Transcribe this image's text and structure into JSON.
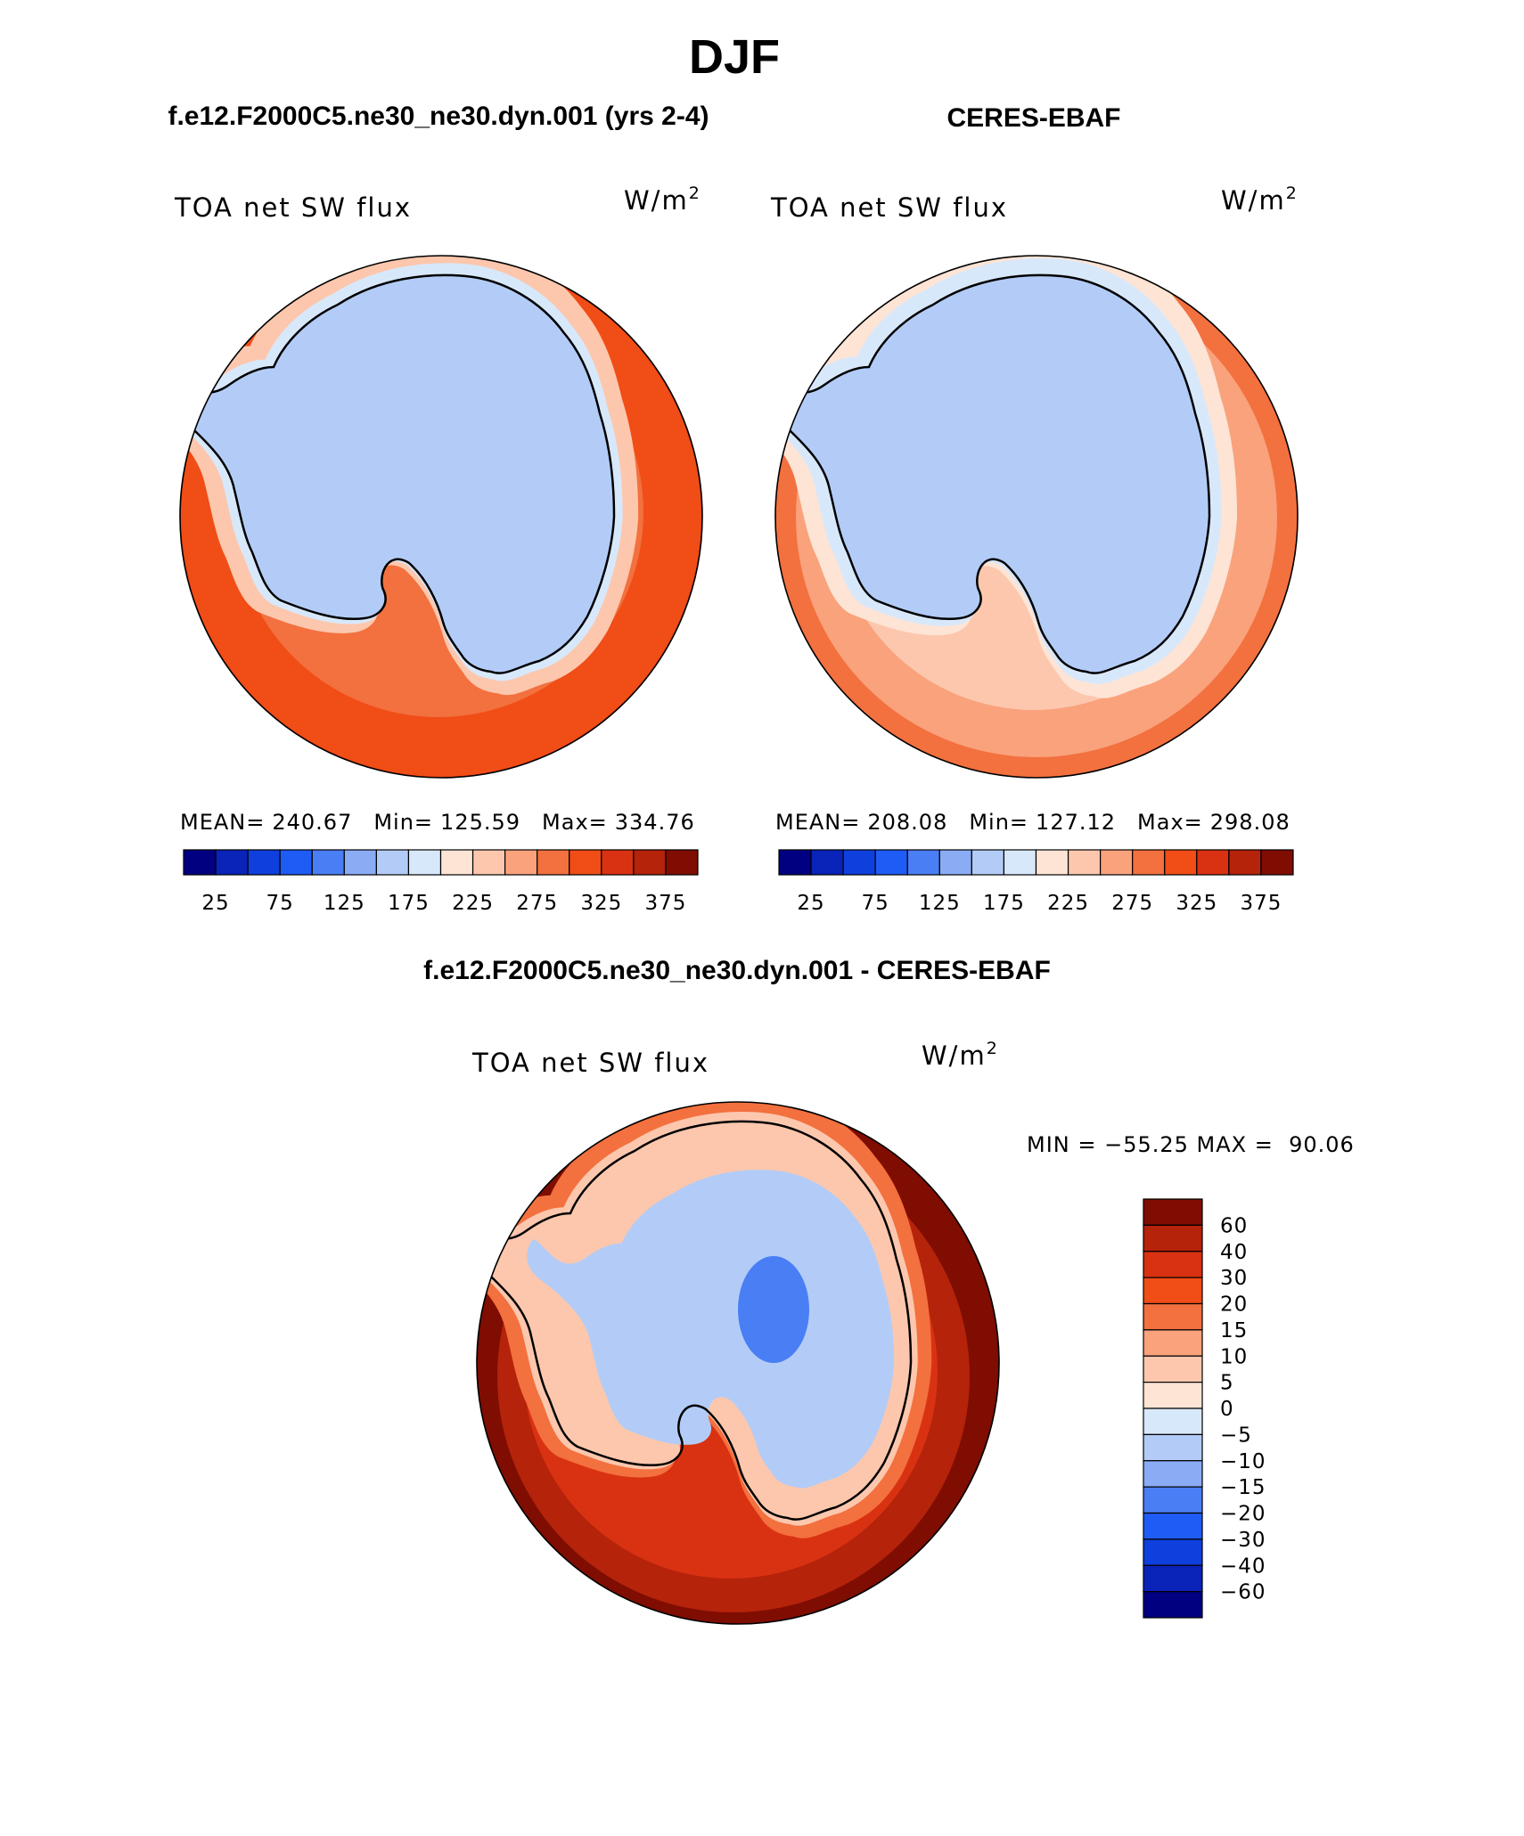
{
  "figure": {
    "title": "DJF",
    "panel_a_title": "f.e12.F2000C5.ne30_ne30.dyn.001 (yrs 2-4)",
    "panel_b_title": "CERES-EBAF",
    "panel_c_title": "f.e12.F2000C5.ne30_ne30.dyn.001 - CERES-EBAF"
  },
  "chart_data": [
    {
      "type": "contour-map",
      "projection": "south-polar-stereographic",
      "name": "model",
      "title": "f.e12.F2000C5.ne30_ne30.dyn.001 (yrs 2-4)",
      "variable": "TOA net SW flux",
      "units": "W/m",
      "units_exp": "2",
      "stats": {
        "mean_label": "MEAN=",
        "mean": "240.67",
        "min_label": "Min=",
        "min": "125.59",
        "max_label": "Max=",
        "max": "334.76"
      },
      "contour_levels": [
        25,
        50,
        75,
        100,
        125,
        150,
        175,
        200,
        225,
        250,
        275,
        300,
        325,
        350,
        375
      ],
      "colorbar_tick_labels": [
        "25",
        "75",
        "125",
        "175",
        "225",
        "275",
        "325",
        "375"
      ],
      "colors": [
        "#000080",
        "#0a23b8",
        "#0f3fdc",
        "#1f5cf5",
        "#4a7ef5",
        "#8aacf5",
        "#b3ccf7",
        "#d8e8fb",
        "#fde4d5",
        "#fcc7ad",
        "#f9a27c",
        "#f3703f",
        "#f04d17",
        "#d93212",
        "#b5230b",
        "#7f0d02"
      ],
      "regions": {
        "antarctica": 150,
        "coastal_ice": 175,
        "ice_margin": 225,
        "southern_ocean_ring": 275,
        "midlatitude_ocean": 300,
        "north_bands": 325
      }
    },
    {
      "type": "contour-map",
      "projection": "south-polar-stereographic",
      "name": "obs",
      "title": "CERES-EBAF",
      "variable": "TOA net SW flux",
      "units": "W/m",
      "units_exp": "2",
      "stats": {
        "mean_label": "MEAN=",
        "mean": "208.08",
        "min_label": "Min=",
        "min": "127.12",
        "max_label": "Max=",
        "max": "298.08"
      },
      "contour_levels": [
        25,
        50,
        75,
        100,
        125,
        150,
        175,
        200,
        225,
        250,
        275,
        300,
        325,
        350,
        375
      ],
      "colorbar_tick_labels": [
        "25",
        "75",
        "125",
        "175",
        "225",
        "275",
        "325",
        "375"
      ],
      "colors": [
        "#000080",
        "#0a23b8",
        "#0f3fdc",
        "#1f5cf5",
        "#4a7ef5",
        "#8aacf5",
        "#b3ccf7",
        "#d8e8fb",
        "#fde4d5",
        "#fcc7ad",
        "#f9a27c",
        "#f3703f",
        "#f04d17",
        "#d93212",
        "#b5230b",
        "#7f0d02"
      ],
      "regions": {
        "antarctica": 150,
        "coastal_ice": 175,
        "ice_margin": 200,
        "southern_ocean_ring": 225,
        "midlatitude_ocean": 250,
        "north_bands": 275
      }
    },
    {
      "type": "contour-map",
      "projection": "south-polar-stereographic",
      "name": "diff",
      "title": "f.e12.F2000C5.ne30_ne30.dyn.001 - CERES-EBAF",
      "variable": "TOA net SW flux",
      "units": "W/m",
      "units_exp": "2",
      "stats_text": "MIN = −55.25 MAX =  90.06",
      "contour_levels": [
        -60,
        -40,
        -30,
        -20,
        -15,
        -10,
        -5,
        0,
        5,
        10,
        15,
        20,
        30,
        40,
        60
      ],
      "colorbar_tick_labels": [
        "−60",
        "−40",
        "−30",
        "−20",
        "−15",
        "−10",
        "−5",
        "0",
        "5",
        "10",
        "15",
        "20",
        "30",
        "40",
        "60"
      ],
      "colors": [
        "#000080",
        "#0a23b8",
        "#0f3fdc",
        "#1f5cf5",
        "#4a7ef5",
        "#8aacf5",
        "#b3ccf7",
        "#d8e8fb",
        "#fde4d5",
        "#fcc7ad",
        "#f9a27c",
        "#f3703f",
        "#f04d17",
        "#d93212",
        "#b5230b",
        "#7f0d02"
      ],
      "regions": {
        "antarctica_interior": -10,
        "antarctica_core": -20,
        "coastal_ice": 5,
        "ice_margin": 15,
        "southern_ocean_ring": 30,
        "midlatitude_ocean": 40,
        "north_bands": 60
      }
    }
  ]
}
